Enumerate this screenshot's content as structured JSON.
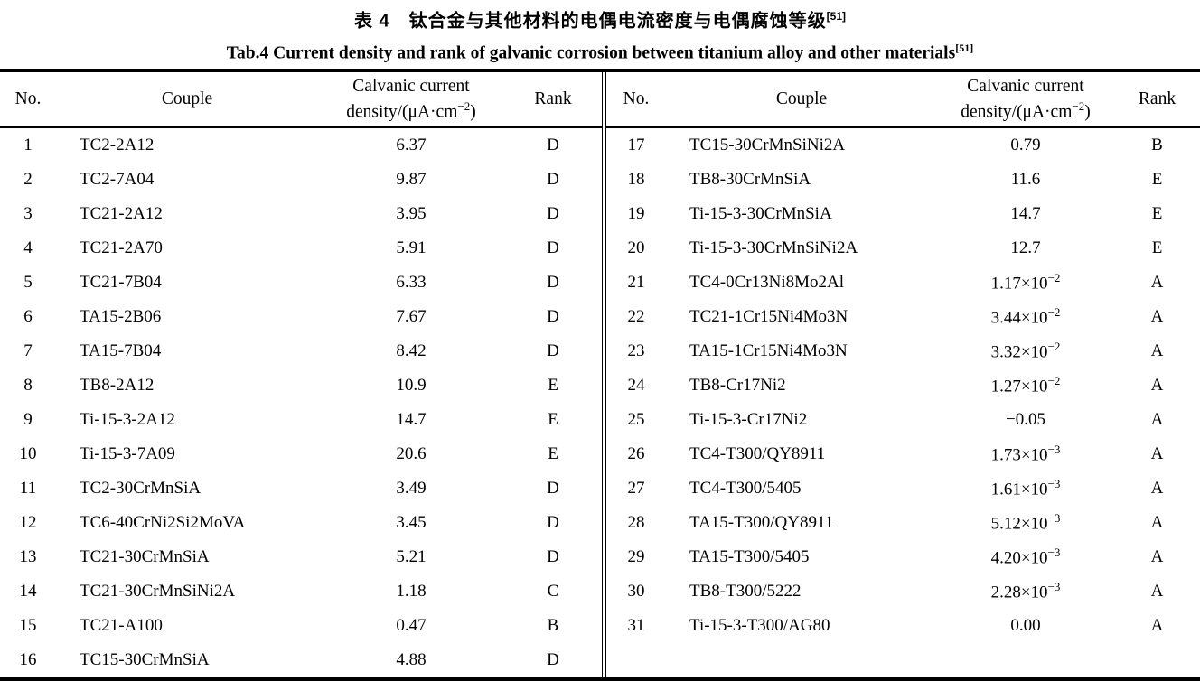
{
  "page": {
    "background": "#ffffff",
    "text_color": "#000000"
  },
  "title": {
    "zh": "表 4　钛合金与其他材料的电偶电流密度与电偶腐蚀等级",
    "zh_ref": "[51]",
    "en": "Tab.4 Current density and rank of galvanic corrosion between titanium alloy and other materials",
    "en_ref": "[51]"
  },
  "table": {
    "columns": {
      "no": "No.",
      "couple": "Couple",
      "density_line1": "Calvanic current",
      "density_line2_pre": "density/(μA·cm",
      "density_line2_sup": "−2",
      "density_line2_post": ")",
      "rank": "Rank"
    },
    "left_rows": [
      {
        "no": "1",
        "couple": "TC2-2A12",
        "density": "6.37",
        "density_sup": "",
        "rank": "D"
      },
      {
        "no": "2",
        "couple": "TC2-7A04",
        "density": "9.87",
        "density_sup": "",
        "rank": "D"
      },
      {
        "no": "3",
        "couple": "TC21-2A12",
        "density": "3.95",
        "density_sup": "",
        "rank": "D"
      },
      {
        "no": "4",
        "couple": "TC21-2A70",
        "density": "5.91",
        "density_sup": "",
        "rank": "D"
      },
      {
        "no": "5",
        "couple": "TC21-7B04",
        "density": "6.33",
        "density_sup": "",
        "rank": "D"
      },
      {
        "no": "6",
        "couple": "TA15-2B06",
        "density": "7.67",
        "density_sup": "",
        "rank": "D"
      },
      {
        "no": "7",
        "couple": "TA15-7B04",
        "density": "8.42",
        "density_sup": "",
        "rank": "D"
      },
      {
        "no": "8",
        "couple": "TB8-2A12",
        "density": "10.9",
        "density_sup": "",
        "rank": "E"
      },
      {
        "no": "9",
        "couple": "Ti-15-3-2A12",
        "density": "14.7",
        "density_sup": "",
        "rank": "E"
      },
      {
        "no": "10",
        "couple": "Ti-15-3-7A09",
        "density": "20.6",
        "density_sup": "",
        "rank": "E"
      },
      {
        "no": "11",
        "couple": "TC2-30CrMnSiA",
        "density": "3.49",
        "density_sup": "",
        "rank": "D"
      },
      {
        "no": "12",
        "couple": "TC6-40CrNi2Si2MoVA",
        "density": "3.45",
        "density_sup": "",
        "rank": "D"
      },
      {
        "no": "13",
        "couple": "TC21-30CrMnSiA",
        "density": "5.21",
        "density_sup": "",
        "rank": "D"
      },
      {
        "no": "14",
        "couple": "TC21-30CrMnSiNi2A",
        "density": "1.18",
        "density_sup": "",
        "rank": "C"
      },
      {
        "no": "15",
        "couple": "TC21-A100",
        "density": "0.47",
        "density_sup": "",
        "rank": "B"
      },
      {
        "no": "16",
        "couple": "TC15-30CrMnSiA",
        "density": "4.88",
        "density_sup": "",
        "rank": "D"
      }
    ],
    "right_rows": [
      {
        "no": "17",
        "couple": "TC15-30CrMnSiNi2A",
        "density": "0.79",
        "density_sup": "",
        "rank": "B"
      },
      {
        "no": "18",
        "couple": "TB8-30CrMnSiA",
        "density": "11.6",
        "density_sup": "",
        "rank": "E"
      },
      {
        "no": "19",
        "couple": "Ti-15-3-30CrMnSiA",
        "density": "14.7",
        "density_sup": "",
        "rank": "E"
      },
      {
        "no": "20",
        "couple": "Ti-15-3-30CrMnSiNi2A",
        "density": "12.7",
        "density_sup": "",
        "rank": "E"
      },
      {
        "no": "21",
        "couple": "TC4-0Cr13Ni8Mo2Al",
        "density": "1.17×10",
        "density_sup": "−2",
        "rank": "A"
      },
      {
        "no": "22",
        "couple": "TC21-1Cr15Ni4Mo3N",
        "density": "3.44×10",
        "density_sup": "−2",
        "rank": "A"
      },
      {
        "no": "23",
        "couple": "TA15-1Cr15Ni4Mo3N",
        "density": "3.32×10",
        "density_sup": "−2",
        "rank": "A"
      },
      {
        "no": "24",
        "couple": "TB8-Cr17Ni2",
        "density": "1.27×10",
        "density_sup": "−2",
        "rank": "A"
      },
      {
        "no": "25",
        "couple": "Ti-15-3-Cr17Ni2",
        "density": "−0.05",
        "density_sup": "",
        "rank": "A"
      },
      {
        "no": "26",
        "couple": "TC4-T300/QY8911",
        "density": "1.73×10",
        "density_sup": "−3",
        "rank": "A"
      },
      {
        "no": "27",
        "couple": "TC4-T300/5405",
        "density": "1.61×10",
        "density_sup": "−3",
        "rank": "A"
      },
      {
        "no": "28",
        "couple": "TA15-T300/QY8911",
        "density": "5.12×10",
        "density_sup": "−3",
        "rank": "A"
      },
      {
        "no": "29",
        "couple": "TA15-T300/5405",
        "density": "4.20×10",
        "density_sup": "−3",
        "rank": "A"
      },
      {
        "no": "30",
        "couple": "TB8-T300/5222",
        "density": "2.28×10",
        "density_sup": "−3",
        "rank": "A"
      },
      {
        "no": "31",
        "couple": "Ti-15-3-T300/AG80",
        "density": "0.00",
        "density_sup": "",
        "rank": "A"
      }
    ]
  }
}
